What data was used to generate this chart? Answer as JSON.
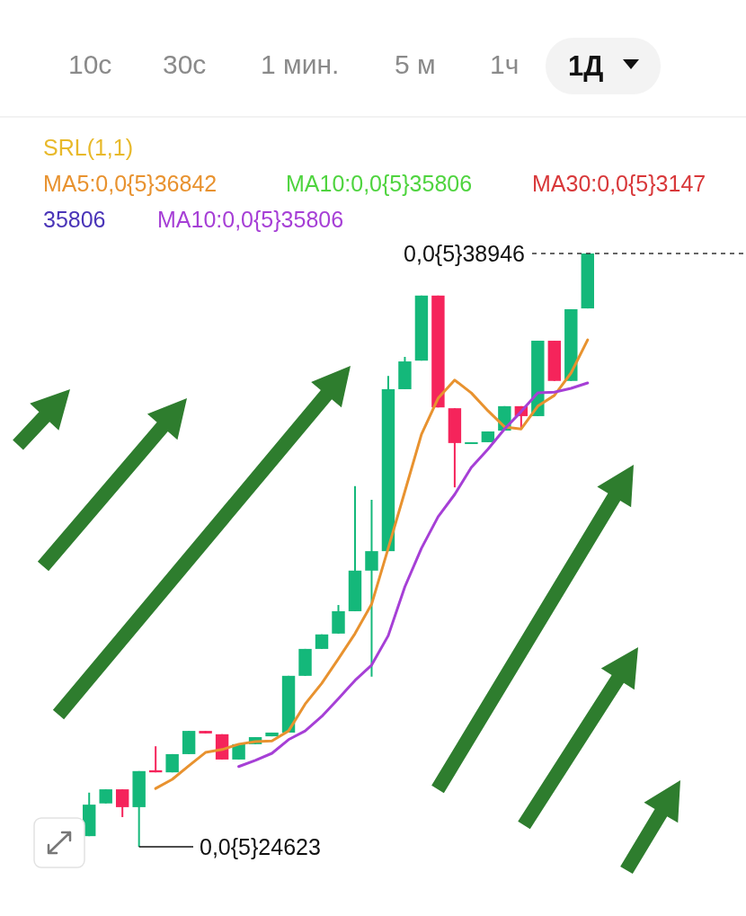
{
  "chart_data": {
    "type": "candlestick",
    "legend": "top left",
    "categories": [
      null,
      null,
      null,
      null,
      null,
      null,
      null,
      null,
      null,
      null,
      null,
      null,
      null,
      null,
      null,
      null,
      null,
      null,
      null,
      null,
      null,
      null,
      null,
      null,
      null,
      null,
      null,
      null,
      null,
      null,
      null
    ],
    "ohlc": [
      [
        2.488e-07,
        2.593e-07,
        2.488e-07,
        2.564e-07
      ],
      [
        2.567e-07,
        2.601e-07,
        2.567e-07,
        2.601e-07
      ],
      [
        2.601e-07,
        2.601e-07,
        2.534e-07,
        2.558e-07
      ],
      [
        2.558e-07,
        2.645e-07,
        2.4623e-07,
        2.645e-07
      ],
      [
        2.647e-07,
        2.705e-07,
        2.642e-07,
        2.642e-07
      ],
      [
        2.642e-07,
        2.686e-07,
        2.642e-07,
        2.686e-07
      ],
      [
        2.686e-07,
        2.742e-07,
        2.686e-07,
        2.742e-07
      ],
      [
        2.742e-07,
        2.742e-07,
        2.736e-07,
        2.736e-07
      ],
      [
        2.734e-07,
        2.734e-07,
        2.673e-07,
        2.673e-07
      ],
      [
        2.673e-07,
        2.71e-07,
        2.673e-07,
        2.71e-07
      ],
      [
        2.71e-07,
        2.727e-07,
        2.71e-07,
        2.727e-07
      ],
      [
        2.729e-07,
        2.738e-07,
        2.729e-07,
        2.738e-07
      ],
      [
        2.738e-07,
        2.875e-07,
        2.738e-07,
        2.875e-07
      ],
      [
        2.875e-07,
        2.94e-07,
        2.875e-07,
        2.94e-07
      ],
      [
        2.94e-07,
        2.975e-07,
        2.94e-07,
        2.975e-07
      ],
      [
        2.977e-07,
        3.046e-07,
        2.977e-07,
        3.031e-07
      ],
      [
        3.031e-07,
        3.333e-07,
        3.031e-07,
        3.129e-07
      ],
      [
        3.129e-07,
        3.3e-07,
        2.873e-07,
        3.176e-07
      ],
      [
        3.176e-07,
        3.599e-07,
        3.176e-07,
        3.567e-07
      ],
      [
        3.567e-07,
        3.645e-07,
        3.567e-07,
        3.634e-07
      ],
      [
        3.636e-07,
        3.793e-07,
        3.636e-07,
        3.793e-07
      ],
      [
        3.793e-07,
        3.793e-07,
        3.523e-07,
        3.523e-07
      ],
      [
        3.521e-07,
        3.521e-07,
        3.33e-07,
        3.437e-07
      ],
      [
        3.437e-07,
        3.439e-07,
        3.437e-07,
        3.439e-07
      ],
      [
        3.439e-07,
        3.465e-07,
        3.439e-07,
        3.465e-07
      ],
      [
        3.467e-07,
        3.526e-07,
        3.467e-07,
        3.526e-07
      ],
      [
        3.526e-07,
        3.526e-07,
        3.471e-07,
        3.502e-07
      ],
      [
        3.502e-07,
        3.684e-07,
        3.502e-07,
        3.684e-07
      ],
      [
        3.684e-07,
        3.684e-07,
        3.587e-07,
        3.587e-07
      ],
      [
        3.587e-07,
        3.76e-07,
        3.587e-07,
        3.76e-07
      ],
      [
        3.762e-07,
        3.8946e-07,
        3.762e-07,
        3.8946e-07
      ]
    ],
    "series": [
      {
        "type": "line",
        "name": "MA5:0,0{5}36842",
        "color": "#e8922f",
        "values": [
          null,
          null,
          null,
          null,
          2.603e-07,
          2.625e-07,
          2.658e-07,
          2.69e-07,
          2.697e-07,
          2.71e-07,
          2.716e-07,
          2.718e-07,
          2.742e-07,
          2.807e-07,
          2.857e-07,
          2.916e-07,
          2.977e-07,
          3.048e-07,
          3.183e-07,
          3.32e-07,
          3.458e-07,
          3.545e-07,
          3.589e-07,
          3.558e-07,
          3.515e-07,
          3.476e-07,
          3.471e-07,
          3.526e-07,
          3.552e-07,
          3.606e-07,
          3.686e-07
        ]
      },
      {
        "type": "line",
        "name": "MA10:0,0{5}35806",
        "color": "#a63fd6",
        "values": [
          null,
          null,
          null,
          null,
          null,
          null,
          null,
          null,
          null,
          2.656e-07,
          2.671e-07,
          2.688e-07,
          2.721e-07,
          2.742e-07,
          2.777e-07,
          2.82e-07,
          2.864e-07,
          2.901e-07,
          2.972e-07,
          3.09e-07,
          3.183e-07,
          3.259e-07,
          3.313e-07,
          3.378e-07,
          3.422e-07,
          3.471e-07,
          3.513e-07,
          3.558e-07,
          3.56e-07,
          3.569e-07,
          3.582e-07
        ]
      }
    ],
    "ref_lines": [
      {
        "axis": "y",
        "value": 3.8946e-07,
        "line_style": "dashed",
        "color": "#333333"
      }
    ],
    "annotations": [
      "10с",
      "30с",
      "1 мин.",
      "5 м",
      "1ч",
      "1Д",
      "SRL(1,1)",
      "MA10:0,0{5}35806",
      "MA30:0,0{5}3147",
      "35806",
      "0,0{5}38946",
      "0,0{5}24623"
    ]
  }
}
